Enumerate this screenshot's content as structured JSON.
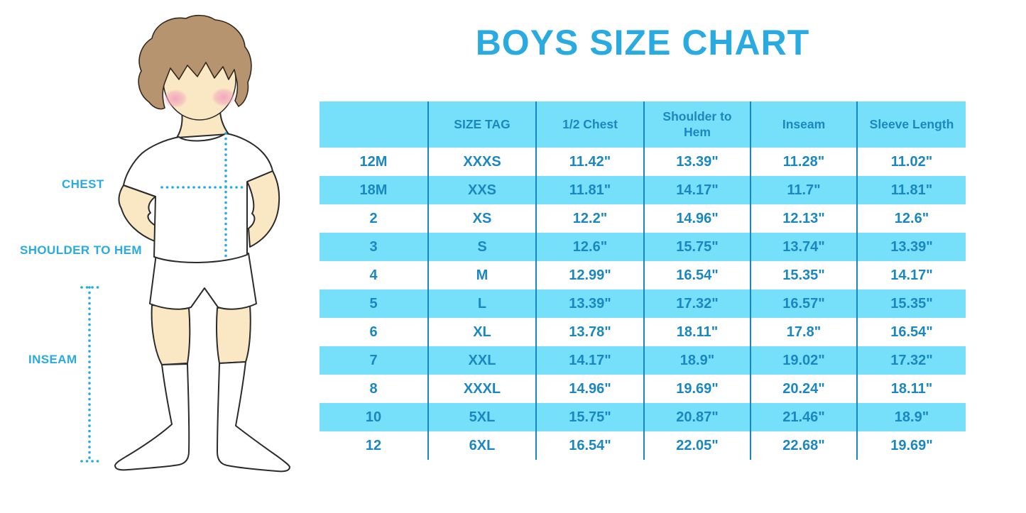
{
  "page": {
    "title": "BOYS SIZE CHART"
  },
  "measurement_labels": {
    "chest": "CHEST",
    "shoulder_to_hem": "SHOULDER TO HEM",
    "inseam": "INSEAM"
  },
  "colors": {
    "title": "#29ABE2",
    "label": "#29ABE2",
    "table_text": "#1B87C1",
    "table_stripe": "#76E0FA",
    "table_separator": "#1787BE",
    "dotted_line": "#29ABE2",
    "skin": "#FAE7C4",
    "hair": "#B6946F",
    "background": "#FFFFFF"
  },
  "chart_data": {
    "type": "table",
    "title": "BOYS SIZE CHART",
    "units": "inches",
    "columns": [
      "",
      "SIZE TAG",
      "1/2 Chest",
      "Shoulder to Hem",
      "Inseam",
      "Sleeve Length"
    ],
    "rows": [
      [
        "12M",
        "XXXS",
        "11.42\"",
        "13.39\"",
        "11.28\"",
        "11.02\""
      ],
      [
        "18M",
        "XXS",
        "11.81\"",
        "14.17\"",
        "11.7\"",
        "11.81\""
      ],
      [
        "2",
        "XS",
        "12.2\"",
        "14.96\"",
        "12.13\"",
        "12.6\""
      ],
      [
        "3",
        "S",
        "12.6\"",
        "15.75\"",
        "13.74\"",
        "13.39\""
      ],
      [
        "4",
        "M",
        "12.99\"",
        "16.54\"",
        "15.35\"",
        "14.17\""
      ],
      [
        "5",
        "L",
        "13.39\"",
        "17.32\"",
        "16.57\"",
        "15.35\""
      ],
      [
        "6",
        "XL",
        "13.78\"",
        "18.11\"",
        "17.8\"",
        "16.54\""
      ],
      [
        "7",
        "XXL",
        "14.17\"",
        "18.9\"",
        "19.02\"",
        "17.32\""
      ],
      [
        "8",
        "XXXL",
        "14.96\"",
        "19.69\"",
        "20.24\"",
        "18.11\""
      ],
      [
        "10",
        "5XL",
        "15.75\"",
        "20.87\"",
        "21.46\"",
        "18.9\""
      ],
      [
        "12",
        "6XL",
        "16.54\"",
        "22.05\"",
        "22.68\"",
        "19.69\""
      ]
    ],
    "layout_hints": {
      "stripe_pattern": "header and every second data row light blue, others white",
      "grid": "vertical separators only, no horizontal or outer borders"
    }
  }
}
